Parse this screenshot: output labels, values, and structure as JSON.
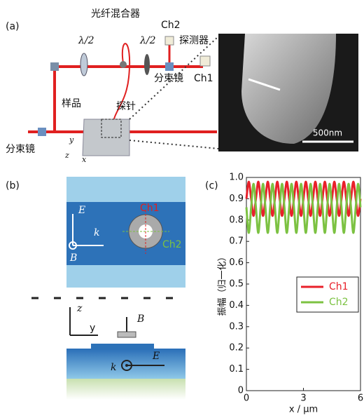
{
  "panel_a": {
    "label": "(a)",
    "half_wave_1": "λ/2",
    "half_wave_2": "λ/2",
    "fiber_coupler": "光纤混合器",
    "ch2": "Ch2",
    "detector": "探测器",
    "splitter_right": "分束镜",
    "ch1": "Ch1",
    "sample": "样品",
    "probe": "探针",
    "splitter_left": "分束镜",
    "axis_y": "y",
    "axis_z": "z",
    "axis_x": "x",
    "scale_bar": "500nm"
  },
  "panel_b": {
    "label": "(b)",
    "ch1": "Ch1",
    "ch2": "Ch2",
    "top_e": "E",
    "top_k": "k",
    "top_b": "B",
    "side_z": "z",
    "side_y": "y",
    "side_b": "B",
    "side_k": "k",
    "side_e": "E"
  },
  "chart_data": {
    "type": "line",
    "label": "(c)",
    "x_label": "x / μm",
    "y_label": "振幅（归一化）",
    "x": [
      0,
      0.125,
      0.25,
      0.375,
      0.5,
      0.625,
      0.75,
      0.875,
      1,
      1.125,
      1.25,
      1.375,
      1.5,
      1.625,
      1.75,
      1.875,
      2,
      2.125,
      2.25,
      2.375,
      2.5,
      2.625,
      2.75,
      2.875,
      3,
      3.125,
      3.25,
      3.375,
      3.5,
      3.625,
      3.75,
      3.875,
      4,
      4.125,
      4.25,
      4.375,
      4.5,
      4.625,
      4.75,
      4.875,
      5,
      5.125,
      5.25,
      5.375,
      5.5,
      5.625,
      5.75,
      5.875,
      6
    ],
    "series": [
      {
        "name": "Ch1",
        "color": "#e8202a",
        "values": [
          0.9,
          0.98,
          0.9,
          0.82,
          0.9,
          0.98,
          0.9,
          0.82,
          0.9,
          0.98,
          0.9,
          0.82,
          0.9,
          0.98,
          0.9,
          0.82,
          0.9,
          0.98,
          0.9,
          0.82,
          0.9,
          0.98,
          0.9,
          0.82,
          0.9,
          0.98,
          0.9,
          0.82,
          0.9,
          0.98,
          0.9,
          0.82,
          0.9,
          0.98,
          0.9,
          0.82,
          0.9,
          0.98,
          0.9,
          0.82,
          0.9,
          0.98,
          0.9,
          0.82,
          0.9,
          0.98,
          0.9,
          0.82,
          0.9
        ]
      },
      {
        "name": "Ch2",
        "color": "#7cc242",
        "values": [
          0.86,
          0.74,
          0.86,
          0.97,
          0.86,
          0.74,
          0.86,
          0.97,
          0.86,
          0.74,
          0.86,
          0.97,
          0.86,
          0.74,
          0.86,
          0.97,
          0.86,
          0.74,
          0.86,
          0.97,
          0.86,
          0.74,
          0.86,
          0.97,
          0.86,
          0.74,
          0.86,
          0.97,
          0.86,
          0.74,
          0.86,
          0.97,
          0.86,
          0.74,
          0.86,
          0.97,
          0.86,
          0.74,
          0.86,
          0.97,
          0.86,
          0.74,
          0.86,
          0.97,
          0.86,
          0.74,
          0.86,
          0.97,
          0.86
        ]
      }
    ],
    "xlim": [
      0,
      6
    ],
    "xticks": [
      0,
      3,
      6
    ],
    "ylim": [
      0,
      1
    ],
    "yticks": [
      0,
      0.1,
      0.2,
      0.3,
      0.4,
      0.5,
      0.6,
      0.7,
      0.8,
      0.9,
      {
        "value": 1,
        "label": "1.0"
      }
    ],
    "legend": "center right"
  }
}
